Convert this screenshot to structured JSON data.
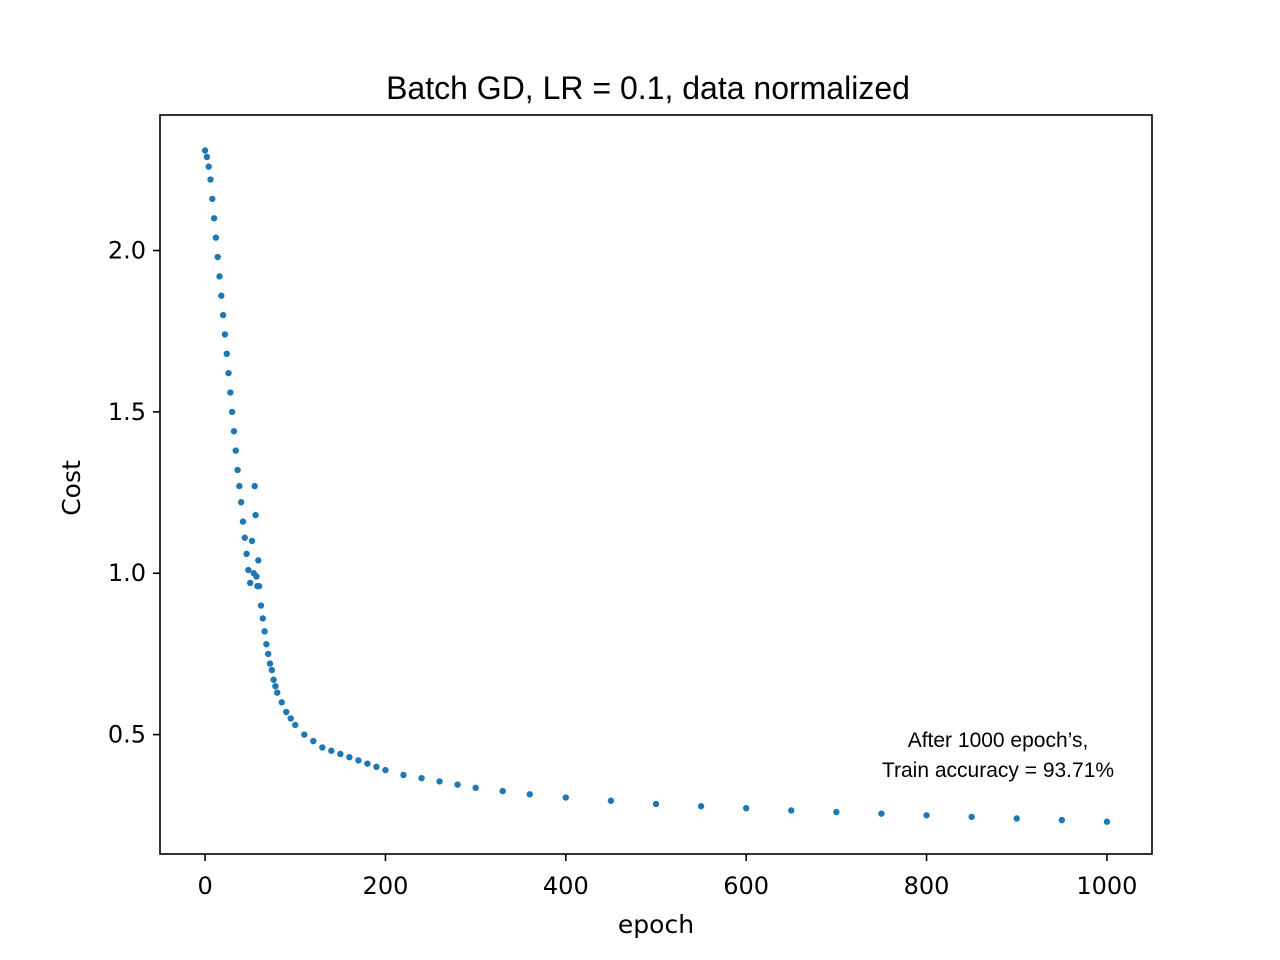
{
  "chart_data": {
    "type": "scatter",
    "title": "Batch GD, LR = 0.1, data normalized",
    "xlabel": "epoch",
    "ylabel": "Cost",
    "xlim": [
      -50,
      1050
    ],
    "ylim": [
      0.13,
      2.42
    ],
    "xticks": [
      0,
      200,
      400,
      600,
      800,
      1000
    ],
    "xtick_labels": [
      "0",
      "200",
      "400",
      "600",
      "800",
      "1000"
    ],
    "yticks": [
      0.5,
      1.0,
      1.5,
      2.0
    ],
    "ytick_labels": [
      "0.5",
      "1.0",
      "1.5",
      "2.0"
    ],
    "grid": false,
    "marker_color": "#1f77b4",
    "series": [
      {
        "x": [
          0,
          2,
          4,
          6,
          8,
          10,
          12,
          14,
          16,
          18,
          20,
          22,
          24,
          26,
          28,
          30,
          32,
          34,
          36,
          38,
          40,
          42,
          44,
          46,
          48,
          50,
          52,
          54,
          55,
          56,
          57,
          58,
          59,
          60,
          62,
          64,
          66,
          68,
          70,
          72,
          74,
          76,
          78,
          80,
          85,
          90,
          95,
          100,
          110,
          120,
          130,
          140,
          150,
          160,
          170,
          180,
          190,
          200,
          220,
          240,
          260,
          280,
          300,
          330,
          360,
          400,
          450,
          500,
          550,
          600,
          650,
          700,
          750,
          800,
          850,
          900,
          950,
          1000
        ],
        "y": [
          2.31,
          2.29,
          2.26,
          2.22,
          2.16,
          2.1,
          2.04,
          1.98,
          1.92,
          1.86,
          1.8,
          1.74,
          1.68,
          1.62,
          1.56,
          1.5,
          1.44,
          1.38,
          1.32,
          1.27,
          1.22,
          1.16,
          1.11,
          1.06,
          1.01,
          0.97,
          1.1,
          1.0,
          1.27,
          1.18,
          0.99,
          0.96,
          1.04,
          0.96,
          0.9,
          0.86,
          0.82,
          0.78,
          0.75,
          0.72,
          0.7,
          0.67,
          0.65,
          0.63,
          0.6,
          0.57,
          0.55,
          0.53,
          0.5,
          0.48,
          0.46,
          0.45,
          0.44,
          0.43,
          0.42,
          0.41,
          0.4,
          0.39,
          0.375,
          0.365,
          0.355,
          0.345,
          0.335,
          0.325,
          0.315,
          0.305,
          0.295,
          0.285,
          0.278,
          0.272,
          0.265,
          0.26,
          0.255,
          0.25,
          0.245,
          0.24,
          0.235,
          0.23
        ]
      }
    ],
    "annotation": [
      "After 1000 epoch’s,",
      "Train accuracy = 93.71%"
    ]
  }
}
